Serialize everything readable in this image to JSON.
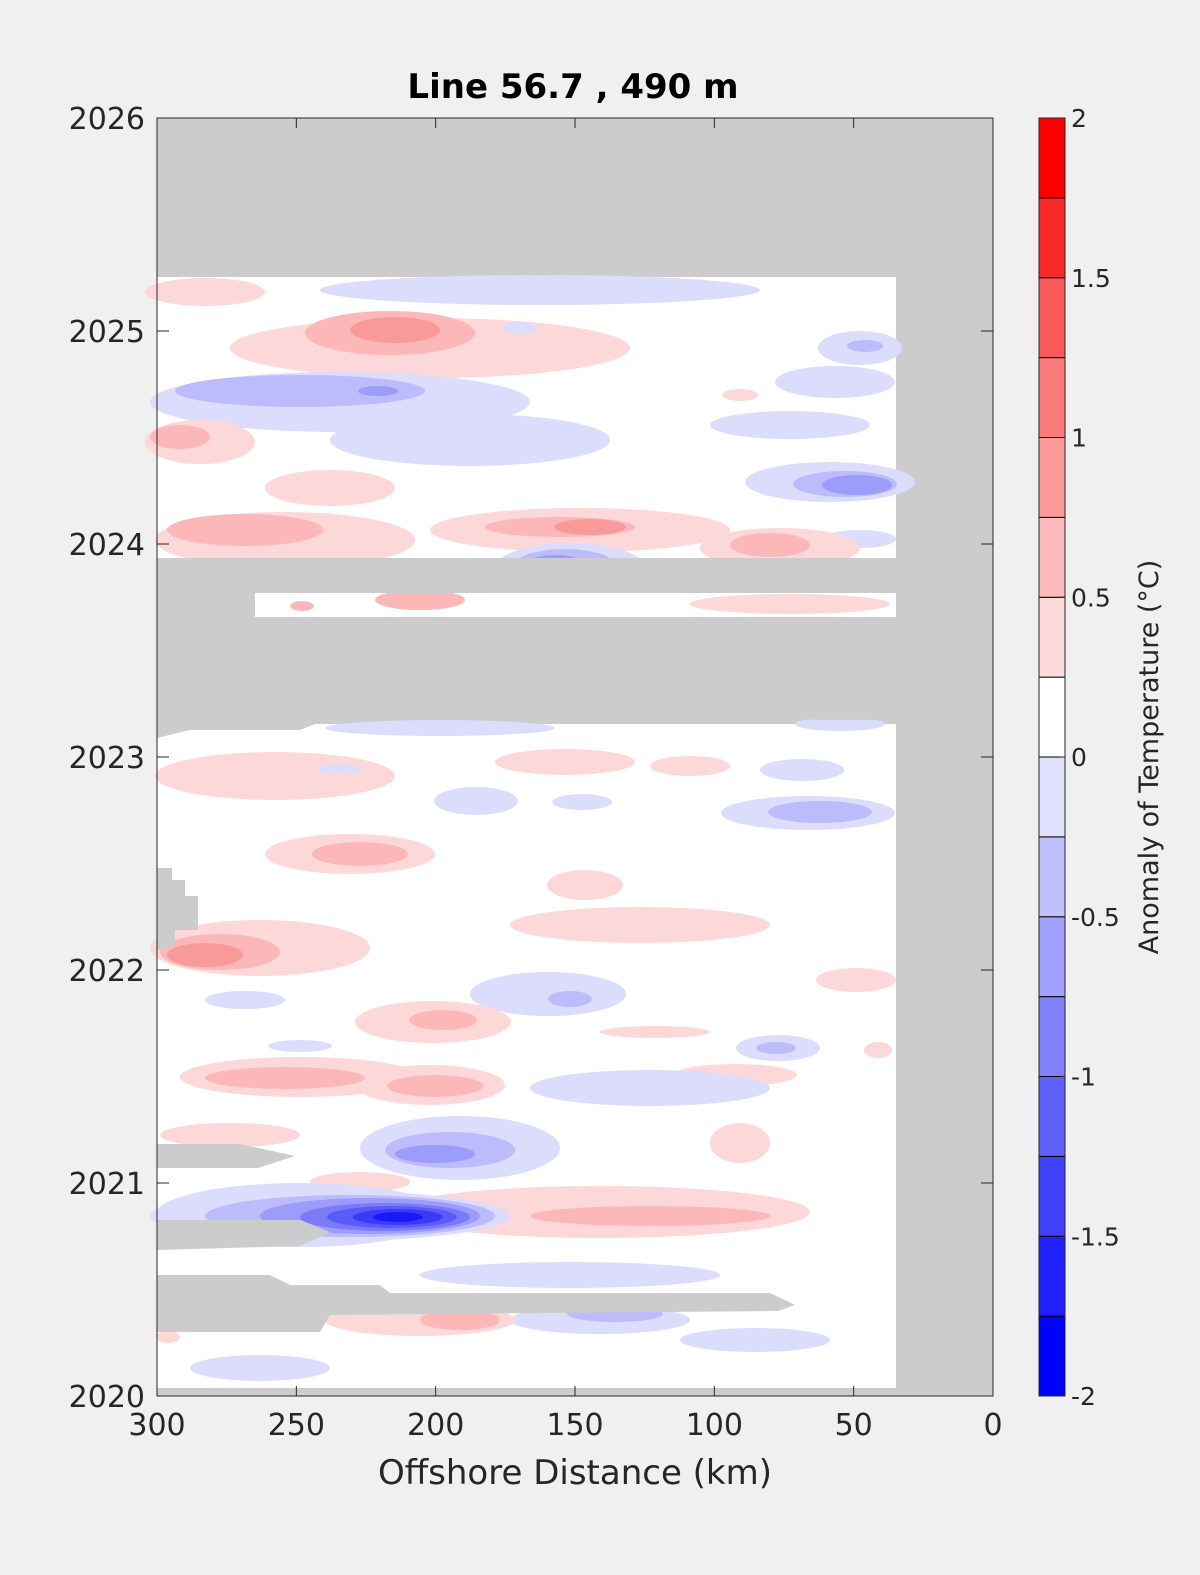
{
  "chart_data": {
    "type": "heatmap",
    "title": "Line 56.7 , 490 m",
    "xlabel": "Offshore Distance (km)",
    "ylabel": "",
    "xlim": [
      300,
      0
    ],
    "ylim": [
      2020,
      2026
    ],
    "x_ticks": [
      "300",
      "250",
      "200",
      "150",
      "100",
      "50",
      "0"
    ],
    "y_ticks": [
      "2020",
      "2021",
      "2022",
      "2023",
      "2024",
      "2025",
      "2026"
    ],
    "colorbar": {
      "label": "Anomaly of Temperature (°C)",
      "range": [
        -2,
        2
      ],
      "ticks": [
        "2",
        "1.5",
        "1",
        "0.5",
        "0",
        "-0.5",
        "-1",
        "-1.5",
        "-2"
      ],
      "levels": [
        -2,
        -1.75,
        -1.5,
        -1.25,
        -1,
        -0.75,
        -0.5,
        -0.25,
        0,
        0.25,
        0.5,
        0.75,
        1,
        1.25,
        1.5,
        1.75,
        2
      ]
    },
    "no_data_color": "#cccccc",
    "anomalies": [
      {
        "x": 248,
        "t": 2025.05,
        "value": 0.6
      },
      {
        "x": 220,
        "t": 2025.0,
        "value": 0.9
      },
      {
        "x": 265,
        "t": 2024.72,
        "value": -0.6
      },
      {
        "x": 230,
        "t": 2024.7,
        "value": -0.9
      },
      {
        "x": 180,
        "t": 2024.55,
        "value": -0.3
      },
      {
        "x": 288,
        "t": 2024.48,
        "value": 0.5
      },
      {
        "x": 50,
        "t": 2024.32,
        "value": -0.8
      },
      {
        "x": 42,
        "t": 2024.27,
        "value": -1.0
      },
      {
        "x": 270,
        "t": 2024.06,
        "value": 0.6
      },
      {
        "x": 145,
        "t": 2024.05,
        "value": 0.8
      },
      {
        "x": 90,
        "t": 2023.95,
        "value": 0.5
      },
      {
        "x": 158,
        "t": 2023.88,
        "value": -1.1
      },
      {
        "x": 240,
        "t": 2022.55,
        "value": 0.5
      },
      {
        "x": 290,
        "t": 2022.02,
        "value": 0.8
      },
      {
        "x": 195,
        "t": 2021.7,
        "value": 0.5
      },
      {
        "x": 160,
        "t": 2021.8,
        "value": -0.6
      },
      {
        "x": 250,
        "t": 2021.42,
        "value": 0.6
      },
      {
        "x": 60,
        "t": 2021.55,
        "value": -0.5
      },
      {
        "x": 195,
        "t": 2021.06,
        "value": -1.0
      },
      {
        "x": 215,
        "t": 2020.75,
        "value": -1.8
      },
      {
        "x": 115,
        "t": 2020.72,
        "value": 0.5
      },
      {
        "x": 140,
        "t": 2020.3,
        "value": -0.7
      }
    ]
  }
}
